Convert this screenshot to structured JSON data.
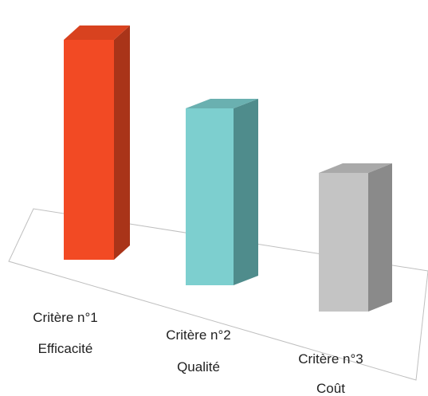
{
  "chart_data": {
    "type": "bar",
    "style": "3d-column",
    "title": "",
    "xlabel": "",
    "ylabel": "",
    "ylim": [
      0,
      100
    ],
    "grid": false,
    "legend": "none",
    "categories": [
      {
        "line1": "Critère n°1",
        "line2": "Efficacité"
      },
      {
        "line1": "Critère n°2",
        "line2": "Qualité"
      },
      {
        "line1": "Critère n°3",
        "line2": "Coût"
      }
    ],
    "values": [
      92,
      74,
      58
    ],
    "colors": [
      {
        "front": "#f24a24",
        "side": "#a93419",
        "top": "#d8421f"
      },
      {
        "front": "#7dcfcf",
        "side": "#4f8c8c",
        "top": "#6ab0b0"
      },
      {
        "front": "#c4c4c4",
        "side": "#8a8a8a",
        "top": "#a9a9a9"
      }
    ],
    "floor_color": "#bfbfbf"
  }
}
